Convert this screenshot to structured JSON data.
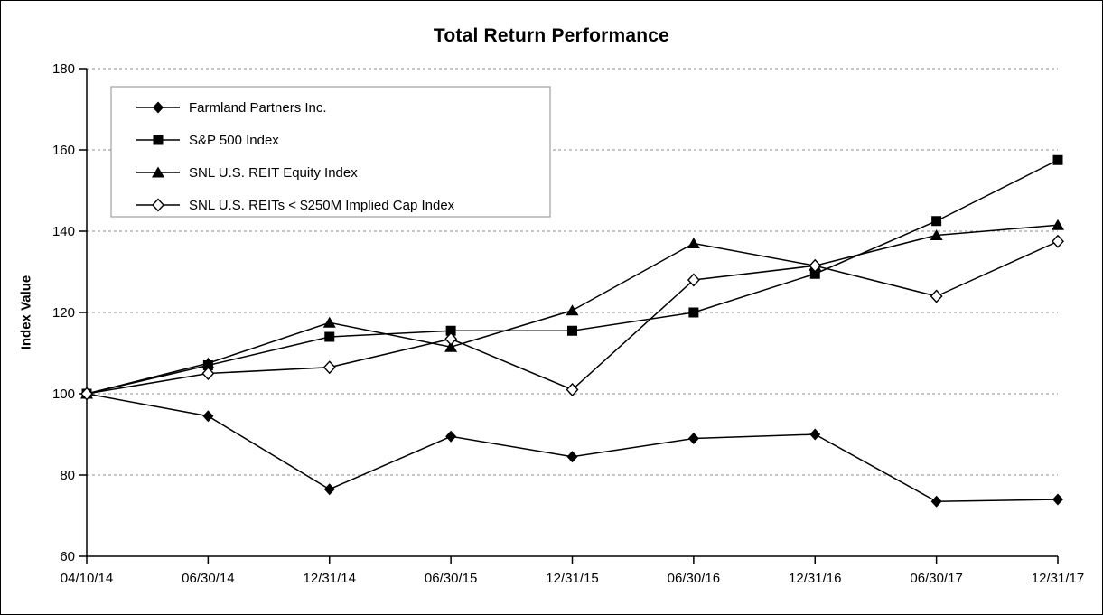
{
  "chart_data": {
    "type": "line",
    "title": "Total Return Performance",
    "xlabel": "",
    "ylabel": "Index Value",
    "ylim": [
      60,
      180
    ],
    "yticks": [
      60,
      80,
      100,
      120,
      140,
      160,
      180
    ],
    "grid": "horizontal-dashed",
    "legend_position": "top-left-inside",
    "line_color": "#000000",
    "categories": [
      "04/10/14",
      "06/30/14",
      "12/31/14",
      "06/30/15",
      "12/31/15",
      "06/30/16",
      "12/31/16",
      "06/30/17",
      "12/31/17"
    ],
    "series": [
      {
        "name": "Farmland Partners Inc.",
        "marker": "diamond-filled",
        "values": [
          100,
          94.5,
          76.5,
          89.5,
          84.5,
          89,
          90,
          73.5,
          74
        ]
      },
      {
        "name": "S&P 500 Index",
        "marker": "square-filled",
        "values": [
          100,
          107,
          114,
          115.5,
          115.5,
          120,
          129.5,
          142.5,
          157.5
        ]
      },
      {
        "name": "SNL U.S. REIT Equity Index",
        "marker": "triangle-filled",
        "values": [
          100,
          107.5,
          117.5,
          111.5,
          120.5,
          137,
          131.5,
          139,
          141.5
        ]
      },
      {
        "name": "SNL U.S. REITs < $250M Implied Cap Index",
        "marker": "diamond-open",
        "values": [
          100,
          105,
          106.5,
          113.5,
          101,
          128,
          131.5,
          124,
          137.5
        ]
      }
    ]
  }
}
